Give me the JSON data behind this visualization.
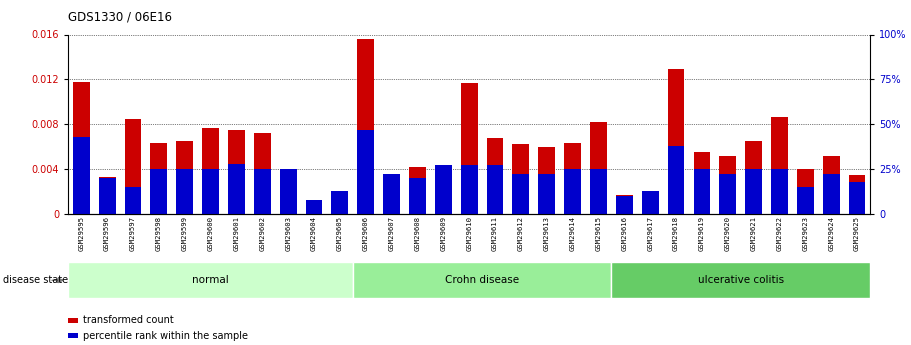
{
  "title": "GDS1330 / 06E16",
  "samples": [
    "GSM29595",
    "GSM29596",
    "GSM29597",
    "GSM29598",
    "GSM29599",
    "GSM29600",
    "GSM29601",
    "GSM29602",
    "GSM29603",
    "GSM29604",
    "GSM29605",
    "GSM29606",
    "GSM29607",
    "GSM29608",
    "GSM29609",
    "GSM29610",
    "GSM29611",
    "GSM29612",
    "GSM29613",
    "GSM29614",
    "GSM29615",
    "GSM29616",
    "GSM29617",
    "GSM29618",
    "GSM29619",
    "GSM29620",
    "GSM29621",
    "GSM29622",
    "GSM29623",
    "GSM29624",
    "GSM29625"
  ],
  "transformed_count": [
    0.01175,
    0.0033,
    0.0085,
    0.0063,
    0.0065,
    0.0077,
    0.0075,
    0.0072,
    0.00395,
    0.00095,
    0.0015,
    0.0156,
    0.0035,
    0.0042,
    0.0033,
    0.01165,
    0.0068,
    0.0062,
    0.006,
    0.0063,
    0.0082,
    0.0017,
    0.002,
    0.01295,
    0.0055,
    0.0052,
    0.0065,
    0.0086,
    0.004,
    0.0052,
    0.0035
  ],
  "percentile_rank": [
    43,
    20,
    15,
    25,
    25,
    25,
    28,
    25,
    25,
    8,
    13,
    47,
    22,
    20,
    27,
    27,
    27,
    22,
    22,
    25,
    25,
    10,
    13,
    38,
    25,
    22,
    25,
    25,
    15,
    22,
    18
  ],
  "groups": [
    {
      "label": "normal",
      "start": 0,
      "end": 11,
      "color": "#ccffcc"
    },
    {
      "label": "Crohn disease",
      "start": 11,
      "end": 21,
      "color": "#99ee99"
    },
    {
      "label": "ulcerative colitis",
      "start": 21,
      "end": 31,
      "color": "#66cc66"
    }
  ],
  "bar_color_red": "#cc0000",
  "bar_color_blue": "#0000cc",
  "ylim_left": [
    0,
    0.016
  ],
  "ylim_right": [
    0,
    100
  ],
  "yticks_left": [
    0,
    0.004,
    0.008,
    0.012,
    0.016
  ],
  "yticks_right": [
    0,
    25,
    50,
    75,
    100
  ],
  "ylabel_left_color": "#cc0000",
  "ylabel_right_color": "#0000cc",
  "grid_color": "#000000",
  "background_color": "#ffffff",
  "tick_bg_color": "#b0b0b0",
  "disease_state_label": "disease state",
  "legend_red": "transformed count",
  "legend_blue": "percentile rank within the sample",
  "bar_width": 0.65
}
